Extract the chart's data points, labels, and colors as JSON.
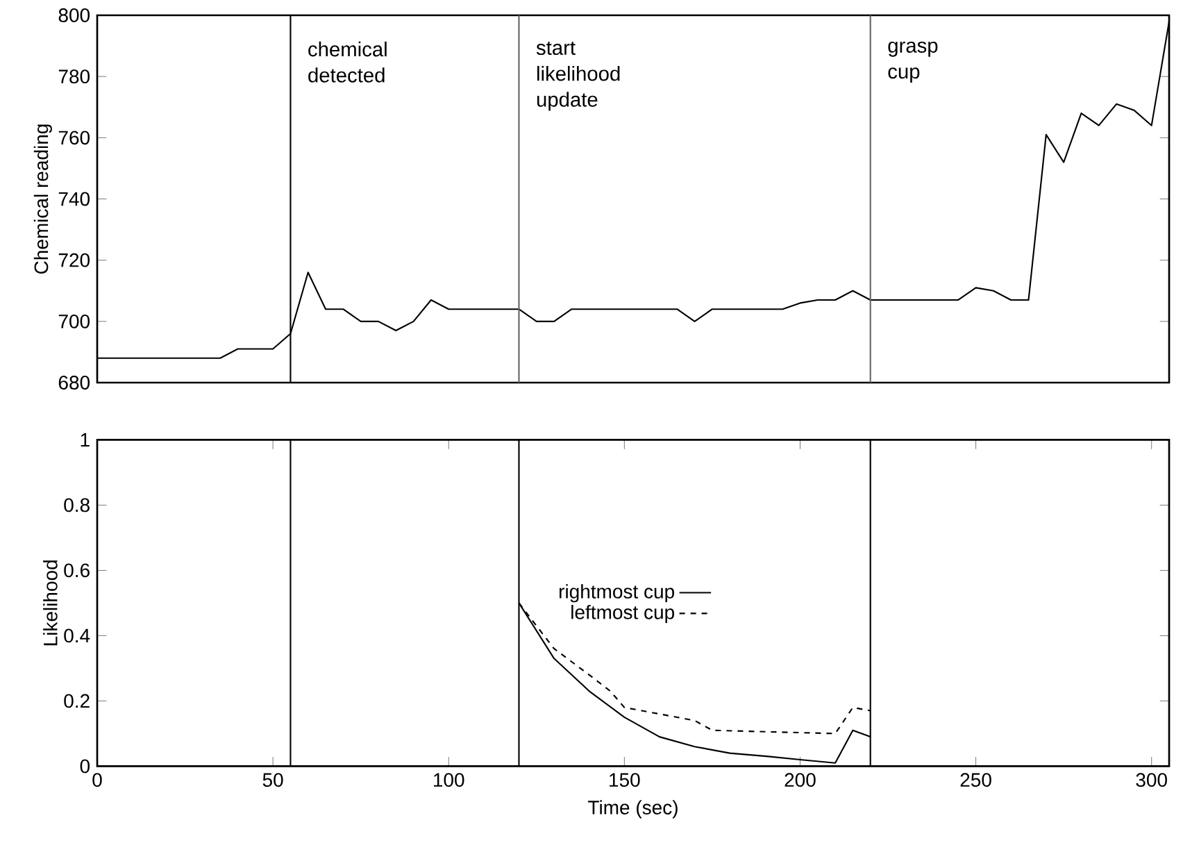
{
  "chart_data": [
    {
      "type": "line",
      "ylabel": "Chemical reading",
      "xlim": [
        0,
        305
      ],
      "ylim": [
        680,
        800
      ],
      "yticks": [
        680,
        700,
        720,
        740,
        760,
        780,
        800
      ],
      "tick_labels": "y",
      "grid": false,
      "legend": false,
      "x": [
        0,
        35,
        40,
        50,
        55,
        60,
        65,
        70,
        75,
        80,
        85,
        90,
        95,
        100,
        120,
        125,
        130,
        135,
        165,
        170,
        175,
        195,
        200,
        205,
        210,
        215,
        220,
        245,
        250,
        255,
        260,
        265,
        270,
        275,
        280,
        285,
        290,
        295,
        300,
        305
      ],
      "series": [
        {
          "color": "#000000",
          "line_style": "solid",
          "values": [
            688,
            688,
            691,
            691,
            696,
            716,
            704,
            704,
            700,
            700,
            697,
            700,
            707,
            704,
            704,
            700,
            700,
            704,
            704,
            700,
            704,
            704,
            706,
            707,
            707,
            710,
            707,
            707,
            711,
            710,
            707,
            707,
            761,
            752,
            768,
            764,
            771,
            769,
            764,
            798
          ]
        }
      ],
      "ref_lines": [
        {
          "axis": "x",
          "value": 55,
          "label": "chemical detected",
          "color": "#000000"
        },
        {
          "axis": "x",
          "value": 120,
          "label": "start likelihood update",
          "color": "#666666"
        },
        {
          "axis": "x",
          "value": 220,
          "label": "grasp cup",
          "color": "#666666"
        }
      ]
    },
    {
      "type": "line",
      "xlabel": "Time (sec)",
      "ylabel": "Likelihood",
      "xlim": [
        0,
        305
      ],
      "ylim": [
        0,
        1
      ],
      "xticks": [
        0,
        50,
        100,
        150,
        200,
        250,
        300
      ],
      "yticks": [
        0,
        0.2,
        0.4,
        0.6,
        0.8,
        1
      ],
      "grid": false,
      "legend": "center",
      "series": [
        {
          "name": "rightmost cup",
          "color": "#000000",
          "line_style": "solid",
          "x": [
            120,
            130,
            140,
            150,
            160,
            170,
            180,
            191,
            200,
            210,
            215,
            220
          ],
          "values": [
            0.5,
            0.33,
            0.23,
            0.15,
            0.09,
            0.06,
            0.04,
            0.03,
            0.02,
            0.01,
            0.11,
            0.09
          ]
        },
        {
          "name": "leftmost cup",
          "color": "#000000",
          "line_style": "dashed",
          "x": [
            120,
            130,
            140,
            146,
            150,
            170,
            175,
            210,
            215,
            220
          ],
          "values": [
            0.5,
            0.36,
            0.28,
            0.23,
            0.18,
            0.14,
            0.11,
            0.1,
            0.18,
            0.17
          ]
        }
      ],
      "ref_lines": [
        {
          "axis": "x",
          "value": 55,
          "color": "#000000"
        },
        {
          "axis": "x",
          "value": 120,
          "color": "#000000"
        },
        {
          "axis": "x",
          "value": 220,
          "color": "#000000"
        }
      ]
    }
  ]
}
